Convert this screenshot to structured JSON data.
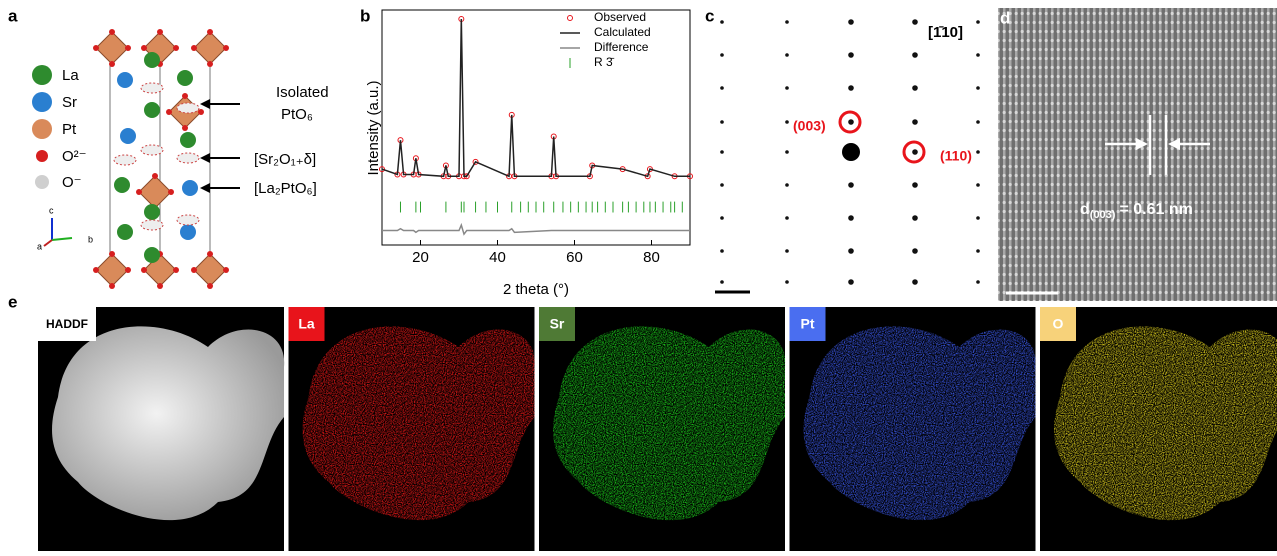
{
  "panel_labels": [
    "a",
    "b",
    "c",
    "d",
    "e"
  ],
  "panel_a": {
    "legend": [
      "La",
      "Sr",
      "Pt",
      "O²⁻",
      "O⁻"
    ],
    "annotations": [
      "Isolated",
      "PtO₆",
      "[Sr₂O₁₊δ]",
      "[La₂PtO₆]"
    ],
    "axes": [
      "c",
      "a",
      "b"
    ]
  },
  "chart_data": {
    "type": "line",
    "xlabel": "2 theta (°)",
    "ylabel": "Intensity (a.u.)",
    "x": [
      10,
      14,
      14.8,
      15.6,
      18.2,
      18.8,
      19.5,
      26,
      26.6,
      27.2,
      30,
      30.6,
      31.3,
      32,
      34.3,
      43,
      43.7,
      44.4,
      54,
      54.6,
      55.2,
      64,
      64.6,
      72.5,
      79,
      79.6,
      86,
      90
    ],
    "series": [
      {
        "name": "Observed",
        "color": "#e8141b",
        "values": [
          12,
          9,
          28,
          9,
          9,
          18,
          9,
          8,
          14,
          8,
          8,
          95,
          8,
          8,
          16,
          8,
          42,
          8,
          8,
          30,
          8,
          8,
          14,
          12,
          8,
          12,
          8,
          8
        ]
      },
      {
        "name": "Calculated",
        "color": "#222222",
        "values": [
          12,
          9,
          28,
          9,
          9,
          18,
          9,
          8,
          14,
          8,
          8,
          95,
          8,
          8,
          16,
          8,
          42,
          8,
          8,
          30,
          8,
          8,
          14,
          12,
          8,
          12,
          8,
          8
        ]
      },
      {
        "name": "Difference",
        "color": "#888888",
        "values": [
          -22,
          -22,
          -21,
          -22,
          -22,
          -23,
          -22,
          -22,
          -22,
          -22,
          -22,
          -19,
          -24,
          -22,
          -22,
          -22,
          -21,
          -23,
          -22,
          -22,
          -22,
          -22,
          -22,
          -22,
          -22,
          -22,
          -22,
          -22
        ]
      }
    ],
    "reflections": {
      "name": "R 3̄",
      "color": "#2aa02a",
      "values": [
        14.8,
        18.8,
        20,
        26.6,
        30.6,
        31.3,
        34.3,
        37,
        40,
        43.7,
        46,
        48,
        50,
        52,
        54.6,
        57,
        59,
        61,
        63,
        64.6,
        66,
        68,
        70,
        72.5,
        74,
        76,
        78,
        79.6,
        81,
        83,
        85,
        86,
        88
      ]
    },
    "xlim": [
      10,
      90
    ],
    "ylim": [
      -30,
      100
    ],
    "xticks": [
      20,
      40,
      60,
      80
    ]
  },
  "panel_c": {
    "zone_axis": "[1̄10]",
    "spots": [
      "(003)",
      "(110)"
    ]
  },
  "panel_d": {
    "spacing_label": [
      "d",
      "(003)",
      "= 0.61 nm"
    ]
  },
  "panel_e": {
    "maps": [
      "HADDF",
      "La",
      "Sr",
      "Pt",
      "O"
    ]
  }
}
